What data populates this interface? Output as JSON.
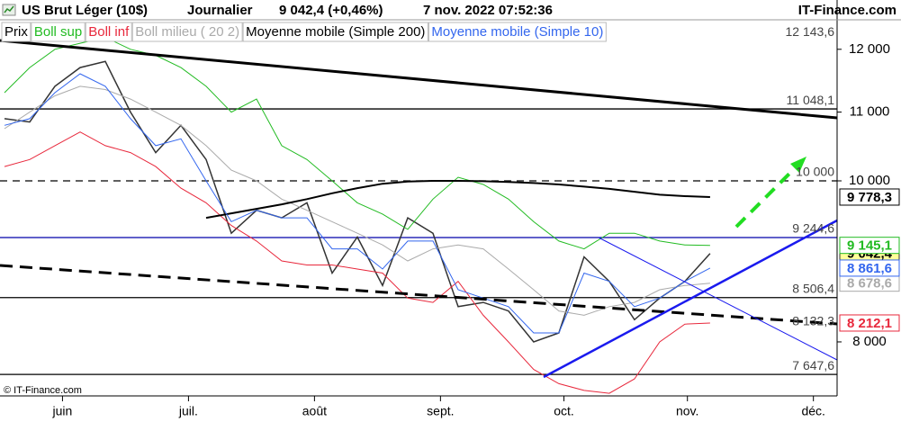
{
  "header": {
    "title": "US Brut Léger (10$)",
    "period": "Journalier",
    "quote": "9 042,4 (+0,46%)",
    "datetime": "7 nov. 2022 07:52:36",
    "brand": "IT-Finance.com"
  },
  "footer": "© IT-Finance.com",
  "chart_data": {
    "type": "line",
    "log_scale": true,
    "x": [
      0,
      1,
      2,
      3,
      4,
      5,
      6,
      7,
      8,
      9,
      10,
      11,
      12,
      13,
      14,
      15,
      16,
      17,
      18,
      19,
      20,
      21,
      22,
      23,
      24,
      25,
      26,
      27,
      28
    ],
    "xlim": [
      -0.18,
      33.04
    ],
    "xticks": [
      {
        "value": 2.3,
        "label": "juin"
      },
      {
        "value": 7.3,
        "label": "juil."
      },
      {
        "value": 12.3,
        "label": "août"
      },
      {
        "value": 17.3,
        "label": "sept."
      },
      {
        "value": 22.2,
        "label": "oct."
      },
      {
        "value": 27.1,
        "label": "nov."
      },
      {
        "value": 32.1,
        "label": "déc."
      }
    ],
    "ylim": [
      7423,
      12532
    ],
    "yticks": [
      {
        "value": 8000,
        "label": "8 000"
      },
      {
        "value": 10000,
        "label": "10 000"
      },
      {
        "value": 11000,
        "label": "11 000"
      },
      {
        "value": 12000,
        "label": "12 000"
      }
    ],
    "series": [
      {
        "name": "Prix",
        "color": "#333333",
        "legend_color": "#000000",
        "width": 1.5,
        "label_bg": "#ffff99",
        "last_label": "9 042,4",
        "values": [
          10900,
          10850,
          11400,
          11700,
          11800,
          11000,
          10400,
          10800,
          10300,
          9300,
          9600,
          9500,
          9700,
          8800,
          9250,
          8650,
          9500,
          9300,
          8400,
          8450,
          8350,
          8000,
          8100,
          9000,
          8700,
          8250,
          8500,
          8700,
          9042.4
        ]
      },
      {
        "name": "Boll sup",
        "color": "#22bb22",
        "legend_color": "#22bb22",
        "width": 1,
        "label_bg": "#ffffff",
        "last_label": "9 145,1",
        "values": [
          11300,
          11700,
          12000,
          12100,
          12200,
          12000,
          11900,
          11700,
          11400,
          11000,
          11200,
          10500,
          10300,
          10000,
          9700,
          9550,
          9350,
          9750,
          10050,
          9950,
          9750,
          9450,
          9200,
          9100,
          9300,
          9300,
          9200,
          9150,
          9145.1
        ]
      },
      {
        "name": "Boll inf",
        "color": "#e8283c",
        "legend_color": "#e8283c",
        "width": 1,
        "label_bg": "#ffffff",
        "last_label": "8 212,1",
        "values": [
          10200,
          10300,
          10500,
          10700,
          10500,
          10400,
          10200,
          9900,
          9700,
          9400,
          9200,
          8950,
          8900,
          8900,
          8850,
          8800,
          8500,
          8450,
          8700,
          8300,
          8000,
          7700,
          7550,
          7480,
          7450,
          7600,
          8000,
          8200,
          8212.1
        ]
      },
      {
        "name": "Boll milieu ( 20 2)",
        "color": "#aaaaaa",
        "legend_color": "#aaaaaa",
        "width": 1,
        "label_bg": "#ffffff",
        "last_label": "8 678,6",
        "values": [
          10750,
          11000,
          11250,
          11400,
          11350,
          11200,
          11000,
          10800,
          10500,
          10150,
          10000,
          9750,
          9600,
          9450,
          9300,
          9150,
          8950,
          9100,
          9150,
          9100,
          8850,
          8600,
          8350,
          8300,
          8400,
          8450,
          8600,
          8650,
          8678.6
        ]
      },
      {
        "name": "Moyenne mobile (Simple 200)",
        "color": "#000000",
        "legend_color": "#000000",
        "width": 2,
        "label_bg": "#ffffff",
        "last_label": "9 778,3",
        "values": [
          null,
          null,
          null,
          null,
          null,
          null,
          null,
          null,
          9500,
          9560,
          9620,
          9680,
          9750,
          9830,
          9900,
          9960,
          9990,
          10000,
          10000,
          9995,
          9985,
          9970,
          9950,
          9920,
          9890,
          9850,
          9810,
          9790,
          9778.3
        ]
      },
      {
        "name": "Moyenne mobile (Simple 10)",
        "color": "#3366ee",
        "legend_color": "#3366ee",
        "width": 1,
        "label_bg": "#ffffff",
        "last_label": "8 861,6",
        "values": [
          10800,
          10900,
          11300,
          11600,
          11400,
          10900,
          10500,
          10600,
          10000,
          9450,
          9600,
          9500,
          9500,
          9100,
          9100,
          8850,
          9200,
          9200,
          8600,
          8500,
          8400,
          8100,
          8100,
          8800,
          8700,
          8400,
          8500,
          8700,
          8861.6
        ]
      }
    ],
    "levels": [
      {
        "value": 12143.6,
        "label": "12 143,6"
      },
      {
        "value": 11048.1,
        "label": "11 048,1",
        "style": "solid",
        "color": "#000000"
      },
      {
        "value": 10000,
        "label": "10 000",
        "style": "dashed",
        "color": "#000000"
      },
      {
        "value": 9244.6,
        "label": "9 244,6",
        "style": "solid",
        "color": "#0000aa"
      },
      {
        "value": 8506.4,
        "label": "8 506,4",
        "style": "solid",
        "color": "#000000"
      },
      {
        "value": 8132.3,
        "label": "8 132,3"
      },
      {
        "value": 7647.6,
        "label": "7 647,6",
        "style": "solid",
        "color": "#000000"
      }
    ]
  }
}
